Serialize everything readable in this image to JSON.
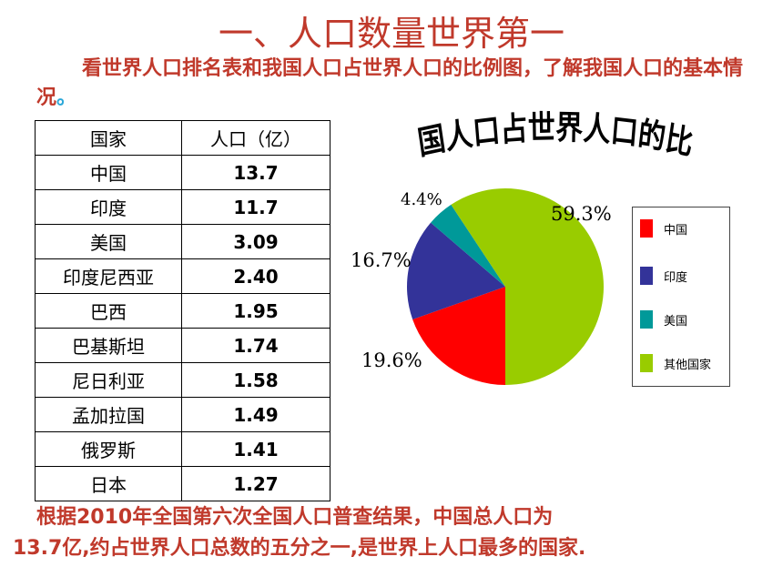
{
  "slide": {
    "title": "一、人口数量世界第一",
    "intro": "看世界人口排名表和我国人口占世界人口的比例图，了解我国人口的基本情况",
    "intro_dot": "。",
    "conclusion_line1": "根据2010年全国第六次全国人口普查结果，中国总人口为",
    "conclusion_line2": "13.7亿,约占世界人口总数的五分之一,是世界上人口最多的国家."
  },
  "table": {
    "headers": [
      "国家",
      "人口（亿）"
    ],
    "rows": [
      {
        "country": "中国",
        "pop": "13.7"
      },
      {
        "country": "印度",
        "pop": "11.7"
      },
      {
        "country": "美国",
        "pop": "3.09"
      },
      {
        "country": "印度尼西亚",
        "pop": "2.40"
      },
      {
        "country": "巴西",
        "pop": "1.95"
      },
      {
        "country": "巴基斯坦",
        "pop": "1.74"
      },
      {
        "country": "尼日利亚",
        "pop": "1.58"
      },
      {
        "country": "孟加拉国",
        "pop": "1.49"
      },
      {
        "country": "俄罗斯",
        "pop": "1.41"
      },
      {
        "country": "日本",
        "pop": "1.27"
      }
    ]
  },
  "chart_data": {
    "type": "pie",
    "title": "我国人口占世界人口的比例",
    "legend_position": "right",
    "slices": [
      {
        "label": "中国",
        "value": 19.6,
        "display": "19.6%",
        "color": "#ff0000"
      },
      {
        "label": "印度",
        "value": 16.7,
        "display": "16.7%",
        "color": "#333399"
      },
      {
        "label": "美国",
        "value": 4.4,
        "display": "4.4%",
        "color": "#009999"
      },
      {
        "label": "其他国家",
        "value": 59.3,
        "display": "59.3%",
        "color": "#99cc00"
      }
    ]
  }
}
